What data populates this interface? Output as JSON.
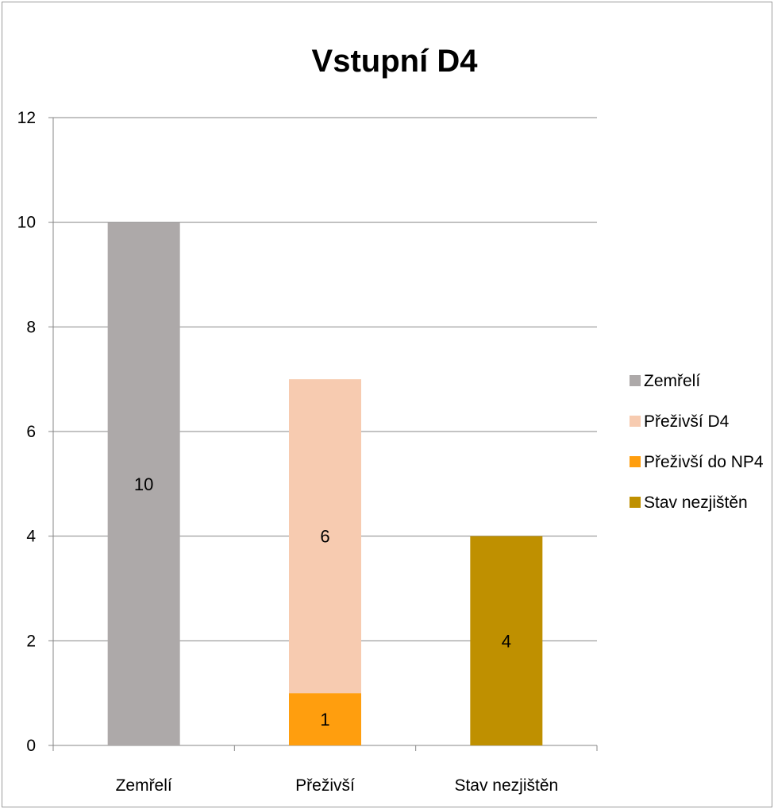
{
  "chart_data": {
    "type": "bar",
    "stacked": true,
    "title": "Vstupní D4",
    "xlabel": "",
    "ylabel": "",
    "categories": [
      "Zemřelí",
      "Přeživší",
      "Stav nezjištěn"
    ],
    "ylim": [
      0,
      12
    ],
    "yticks": [
      0,
      2,
      4,
      6,
      8,
      10,
      12
    ],
    "grid": true,
    "legend_position": "right",
    "series": [
      {
        "name": "Zemřelí",
        "color": "#ada9a9",
        "values": [
          10,
          null,
          null
        ]
      },
      {
        "name": "Přeživší do NP4",
        "color": "#ff9e0e",
        "values": [
          null,
          1,
          null
        ]
      },
      {
        "name": "Přeživší D4",
        "color": "#f7cbb0",
        "values": [
          null,
          6,
          null
        ]
      },
      {
        "name": "Stav nezjištěn",
        "color": "#bf9000",
        "values": [
          null,
          null,
          4
        ]
      }
    ],
    "legend_order": [
      "Zemřelí",
      "Přeživší D4",
      "Přeživší do NP4",
      "Stav nezjištěn"
    ]
  }
}
